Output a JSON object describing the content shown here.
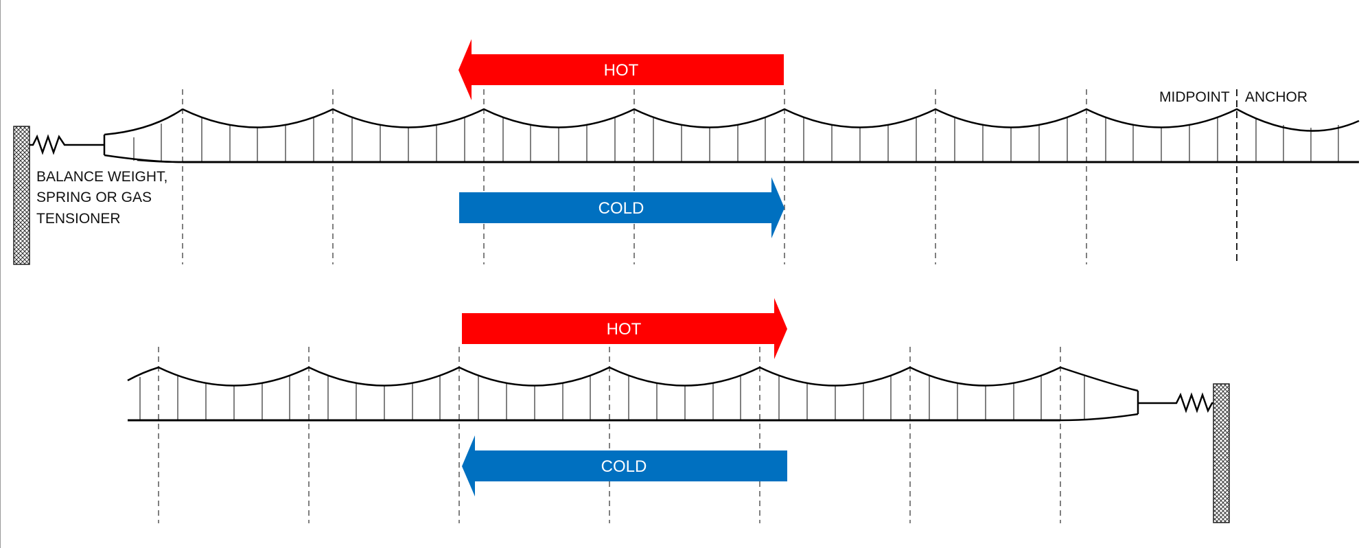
{
  "colors": {
    "hot": "#ff0000",
    "cold": "#0070c0",
    "line": "#000000",
    "guide": "#555555"
  },
  "labels": {
    "tensioner_line1": "BALANCE WEIGHT,",
    "tensioner_line2": "SPRING OR GAS",
    "tensioner_line3": "TENSIONER",
    "midpoint": "MIDPOINT",
    "anchor": "ANCHOR"
  },
  "top": {
    "hot_label": "HOT",
    "hot_direction": "left",
    "cold_label": "COLD",
    "cold_direction": "right"
  },
  "bottom": {
    "hot_label": "HOT",
    "hot_direction": "right",
    "cold_label": "COLD",
    "cold_direction": "left"
  }
}
